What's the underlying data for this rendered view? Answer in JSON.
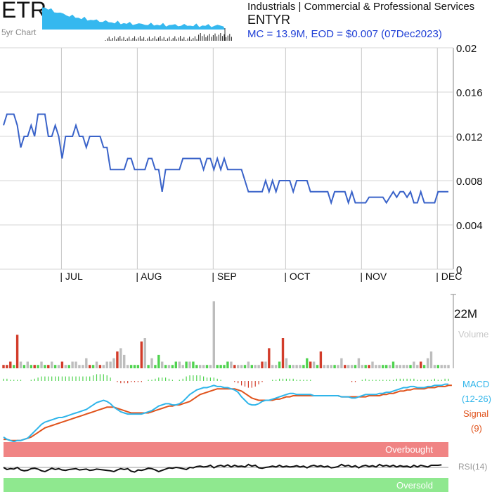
{
  "header": {
    "ticker": "ETR",
    "spark_label": "5yr Chart",
    "sector": "Industrials | Commercial & Professional Services",
    "company": "ENTYR",
    "stats": "MC = 13.9M, EOD = $0.007 (07Dec2023)"
  },
  "colors": {
    "price_line": "#3a63c9",
    "spark_fill": "#35b8ef",
    "vol_up": "#4fd34f",
    "vol_down": "#d23c2a",
    "vol_neutral": "#bdbdbd",
    "macd_line": "#2fb5ea",
    "signal_line": "#e0531c",
    "overbought_band": "#f08484",
    "oversold_band": "#8fe88f",
    "rsi_line": "#111111"
  },
  "chart_data": [
    {
      "type": "line",
      "title": "",
      "ylim": [
        0,
        0.02
      ],
      "y_ticks": [
        "0.02",
        "0.016",
        "0.012",
        "0.008",
        "0.004",
        "0"
      ],
      "x_ticks": [
        "| JUL",
        "| AUG",
        "| SEP",
        "| OCT",
        "| NOV",
        "| DEC"
      ],
      "x_tick_positions": [
        17,
        39,
        61,
        82,
        104,
        126
      ],
      "grid": true,
      "series": [
        {
          "values": [
            0.013,
            0.014,
            0.014,
            0.014,
            0.013,
            0.011,
            0.012,
            0.012,
            0.013,
            0.012,
            0.014,
            0.014,
            0.014,
            0.012,
            0.012,
            0.013,
            0.012,
            0.01,
            0.012,
            0.012,
            0.012,
            0.013,
            0.012,
            0.012,
            0.011,
            0.012,
            0.012,
            0.012,
            0.012,
            0.011,
            0.011,
            0.009,
            0.009,
            0.009,
            0.009,
            0.009,
            0.01,
            0.01,
            0.009,
            0.009,
            0.009,
            0.009,
            0.01,
            0.01,
            0.009,
            0.009,
            0.007,
            0.009,
            0.009,
            0.009,
            0.009,
            0.009,
            0.01,
            0.01,
            0.01,
            0.01,
            0.01,
            0.01,
            0.009,
            0.01,
            0.01,
            0.009,
            0.01,
            0.009,
            0.01,
            0.009,
            0.009,
            0.009,
            0.009,
            0.009,
            0.008,
            0.007,
            0.007,
            0.007,
            0.007,
            0.007,
            0.008,
            0.007,
            0.008,
            0.007,
            0.008,
            0.008,
            0.008,
            0.008,
            0.007,
            0.008,
            0.008,
            0.008,
            0.008,
            0.007,
            0.007,
            0.007,
            0.007,
            0.007,
            0.007,
            0.006,
            0.007,
            0.007,
            0.007,
            0.007,
            0.006,
            0.007,
            0.006,
            0.006,
            0.006,
            0.006,
            0.0065,
            0.0065,
            0.0065,
            0.0065,
            0.0065,
            0.006,
            0.0065,
            0.007,
            0.0065,
            0.007,
            0.007,
            0.0065,
            0.007,
            0.006,
            0.006,
            0.007,
            0.006,
            0.006,
            0.006,
            0.006,
            0.007,
            0.007,
            0.007,
            0.007
          ]
        }
      ]
    },
    {
      "type": "bar",
      "title": "",
      "label": "Volume",
      "y_ticks": [
        "22M"
      ],
      "ylim": [
        0,
        22
      ],
      "series": [
        {
          "values": [
            1,
            1,
            2,
            1,
            10,
            2,
            1,
            2,
            1,
            1,
            1,
            2,
            1,
            1,
            2,
            1,
            1,
            2,
            1,
            1,
            2,
            2,
            1,
            1,
            3,
            1,
            1,
            2,
            1,
            1,
            2,
            2,
            3,
            5,
            6,
            4,
            1,
            1,
            1,
            1,
            8,
            9,
            1,
            3,
            1,
            4,
            2,
            1,
            1,
            1,
            2,
            2,
            1,
            2,
            2,
            2,
            1,
            1,
            1,
            1,
            1,
            20,
            1,
            1,
            1,
            2,
            2,
            1,
            1,
            1,
            1,
            2,
            1,
            1,
            1,
            2,
            2,
            6,
            1,
            1,
            2,
            9,
            3,
            1,
            1,
            1,
            1,
            1,
            3,
            2,
            2,
            1,
            5,
            1,
            1,
            1,
            1,
            1,
            3,
            1,
            1,
            1,
            1,
            3,
            1,
            1,
            1,
            2,
            1,
            1,
            1,
            1,
            1,
            2,
            1,
            1,
            1,
            1,
            1,
            2,
            1,
            2,
            1,
            3,
            5,
            1,
            1,
            1,
            1,
            1
          ],
          "colors": [
            "d",
            "d",
            "d",
            "u",
            "d",
            "n",
            "u",
            "n",
            "u",
            "d",
            "u",
            "n",
            "u",
            "d",
            "n",
            "u",
            "n",
            "d",
            "n",
            "u",
            "n",
            "n",
            "n",
            "n",
            "n",
            "d",
            "u",
            "n",
            "d",
            "n",
            "n",
            "n",
            "n",
            "d",
            "n",
            "n",
            "n",
            "u",
            "u",
            "u",
            "d",
            "n",
            "u",
            "n",
            "u",
            "u",
            "n",
            "u",
            "n",
            "u",
            "u",
            "n",
            "n",
            "u",
            "n",
            "u",
            "u",
            "n",
            "n",
            "u",
            "n",
            "n",
            "u",
            "u",
            "u",
            "u",
            "n",
            "d",
            "n",
            "n",
            "u",
            "n",
            "u",
            "n",
            "n",
            "d",
            "n",
            "d",
            "n",
            "n",
            "u",
            "d",
            "n",
            "u",
            "n",
            "n",
            "n",
            "u",
            "u",
            "d",
            "n",
            "u",
            "d",
            "n",
            "n",
            "n",
            "u",
            "n",
            "n",
            "d",
            "n",
            "n",
            "u",
            "n",
            "n",
            "u",
            "d",
            "n",
            "n",
            "n",
            "u",
            "u",
            "n",
            "u",
            "n",
            "n",
            "n",
            "n",
            "u",
            "n",
            "n",
            "d",
            "u",
            "n",
            "n",
            "n",
            "u",
            "n",
            "n",
            "n"
          ]
        }
      ]
    },
    {
      "type": "line",
      "title": "",
      "series": [
        {
          "name": "MACD\n(12-26)",
          "values": [
            -0.0001,
            -0.0003,
            -0.0004,
            -0.0005,
            -0.0004,
            -0.0004,
            -0.0003,
            -0.0002,
            0.0001,
            0.0004,
            0.0007,
            0.001,
            0.0012,
            0.0013,
            0.0014,
            0.0015,
            0.0016,
            0.0016,
            0.0017,
            0.0018,
            0.0019,
            0.002,
            0.0021,
            0.0022,
            0.0023,
            0.0025,
            0.0027,
            0.0029,
            0.003,
            0.0031,
            0.003,
            0.0028,
            0.0025,
            0.0023,
            0.0021,
            0.002,
            0.0019,
            0.0019,
            0.0019,
            0.0019,
            0.0019,
            0.002,
            0.0021,
            0.0022,
            0.0024,
            0.0026,
            0.0027,
            0.0028,
            0.0028,
            0.0027,
            0.0027,
            0.0028,
            0.003,
            0.0033,
            0.0036,
            0.0038,
            0.004,
            0.0041,
            0.0042,
            0.0042,
            0.0043,
            0.0044,
            0.0043,
            0.0043,
            0.0042,
            0.0042,
            0.0041,
            0.004,
            0.0038,
            0.0034,
            0.0031,
            0.0028,
            0.0027,
            0.0027,
            0.0028,
            0.003,
            0.0031,
            0.0031,
            0.0032,
            0.0033,
            0.0034,
            0.0035,
            0.0036,
            0.0037,
            0.0037,
            0.0036,
            0.0036,
            0.0036,
            0.0036,
            0.0036,
            0.0035,
            0.0035,
            0.0035,
            0.0035,
            0.0035,
            0.0035,
            0.0035,
            0.0035,
            0.0034,
            0.0034,
            0.0034,
            0.0033,
            0.0033,
            0.0034,
            0.0035,
            0.0036,
            0.0036,
            0.0036,
            0.0036,
            0.0037,
            0.0037,
            0.0038,
            0.0038,
            0.0039,
            0.004,
            0.0041,
            0.0042,
            0.0042,
            0.0043,
            0.0043,
            0.0042,
            0.0042,
            0.0042,
            0.0043,
            0.0043,
            0.0044,
            0.0044,
            0.0044,
            0.0045,
            0.0045
          ]
        },
        {
          "name": "Signal\n(9)",
          "values": [
            -0.0003,
            -0.0003,
            -0.0004,
            -0.0004,
            -0.0004,
            -0.0004,
            -0.0003,
            -0.0002,
            -0.0001,
            0.0001,
            0.0003,
            0.0005,
            0.0007,
            0.0008,
            0.0009,
            0.001,
            0.0011,
            0.0012,
            0.0013,
            0.0014,
            0.0015,
            0.0016,
            0.0017,
            0.0018,
            0.0019,
            0.002,
            0.0021,
            0.0022,
            0.0023,
            0.0024,
            0.0025,
            0.0025,
            0.0025,
            0.0024,
            0.0023,
            0.0022,
            0.0021,
            0.002,
            0.002,
            0.002,
            0.002,
            0.002,
            0.002,
            0.0021,
            0.0022,
            0.0023,
            0.0024,
            0.0025,
            0.0026,
            0.0026,
            0.0027,
            0.0027,
            0.0028,
            0.0029,
            0.003,
            0.0032,
            0.0034,
            0.0036,
            0.0037,
            0.0038,
            0.0039,
            0.004,
            0.0041,
            0.0041,
            0.0041,
            0.0041,
            0.0041,
            0.0041,
            0.004,
            0.0039,
            0.0037,
            0.0035,
            0.0033,
            0.0032,
            0.0031,
            0.0031,
            0.0031,
            0.0031,
            0.0031,
            0.0032,
            0.0032,
            0.0033,
            0.0034,
            0.0034,
            0.0035,
            0.0035,
            0.0035,
            0.0035,
            0.0035,
            0.0035,
            0.0035,
            0.0035,
            0.0035,
            0.0035,
            0.0035,
            0.0035,
            0.0035,
            0.0035,
            0.0034,
            0.0034,
            0.0034,
            0.0034,
            0.0034,
            0.0034,
            0.0034,
            0.0034,
            0.0035,
            0.0035,
            0.0035,
            0.0035,
            0.0036,
            0.0036,
            0.0037,
            0.0037,
            0.0038,
            0.0039,
            0.0039,
            0.004,
            0.004,
            0.0041,
            0.0041,
            0.0041,
            0.0041,
            0.0042,
            0.0042,
            0.0042,
            0.0043,
            0.0043,
            0.0043,
            0.0044,
            0.0044
          ]
        }
      ],
      "histogram": [
        2,
        2,
        1,
        1,
        1,
        1,
        0,
        0,
        1,
        2,
        3,
        4,
        4,
        4,
        4,
        4,
        4,
        4,
        4,
        4,
        4,
        4,
        4,
        4,
        4,
        4,
        5,
        6,
        6,
        6,
        5,
        3,
        0,
        -1,
        -2,
        -2,
        -2,
        -1,
        -1,
        -1,
        -1,
        0,
        1,
        1,
        2,
        3,
        3,
        3,
        2,
        1,
        0,
        1,
        2,
        4,
        5,
        5,
        5,
        5,
        4,
        3,
        3,
        3,
        2,
        1,
        0,
        0,
        0,
        -1,
        -2,
        -4,
        -5,
        -6,
        -6,
        -5,
        -3,
        -1,
        0,
        0,
        1,
        1,
        2,
        2,
        2,
        2,
        2,
        1,
        1,
        1,
        1,
        1,
        0,
        0,
        0,
        0,
        0,
        0,
        0,
        0,
        0,
        0,
        0,
        -1,
        -1,
        0,
        1,
        2,
        1,
        1,
        1,
        1,
        1,
        1,
        1,
        1,
        2,
        2,
        2,
        2,
        2,
        2,
        1,
        1,
        1,
        1,
        1,
        2,
        1,
        1,
        2,
        2
      ]
    },
    {
      "type": "line",
      "title": "",
      "series": [
        {
          "name": "RSI(14)",
          "values": [
            50,
            45,
            47,
            46,
            50,
            44,
            42,
            43,
            47,
            48,
            46,
            42,
            40,
            44,
            48,
            45,
            47,
            44,
            43,
            45,
            46,
            47,
            44,
            45,
            46,
            43,
            44,
            46,
            45,
            44,
            43,
            42,
            40,
            44,
            47,
            45,
            47,
            41,
            39,
            44,
            43,
            45,
            48,
            47,
            44,
            40,
            43,
            46,
            49,
            48,
            50,
            49,
            47,
            45,
            50,
            49,
            52,
            53,
            51,
            52,
            55,
            49,
            53,
            55,
            52,
            56,
            51,
            55,
            52,
            53,
            51,
            57,
            53,
            55,
            49,
            48,
            50,
            51,
            53,
            51,
            55,
            51,
            53,
            51,
            52,
            54,
            51,
            53,
            49,
            53,
            55,
            52,
            54,
            51,
            53,
            49,
            50,
            52,
            57,
            53,
            55,
            51,
            54,
            49,
            53,
            55,
            52,
            54,
            51,
            57,
            53,
            55,
            52,
            55,
            51,
            54,
            52,
            53,
            50,
            55,
            51,
            55,
            53,
            51,
            55,
            55,
            55,
            56
          ]
        }
      ],
      "bands": [
        "Overbought",
        "Oversold"
      ]
    }
  ]
}
